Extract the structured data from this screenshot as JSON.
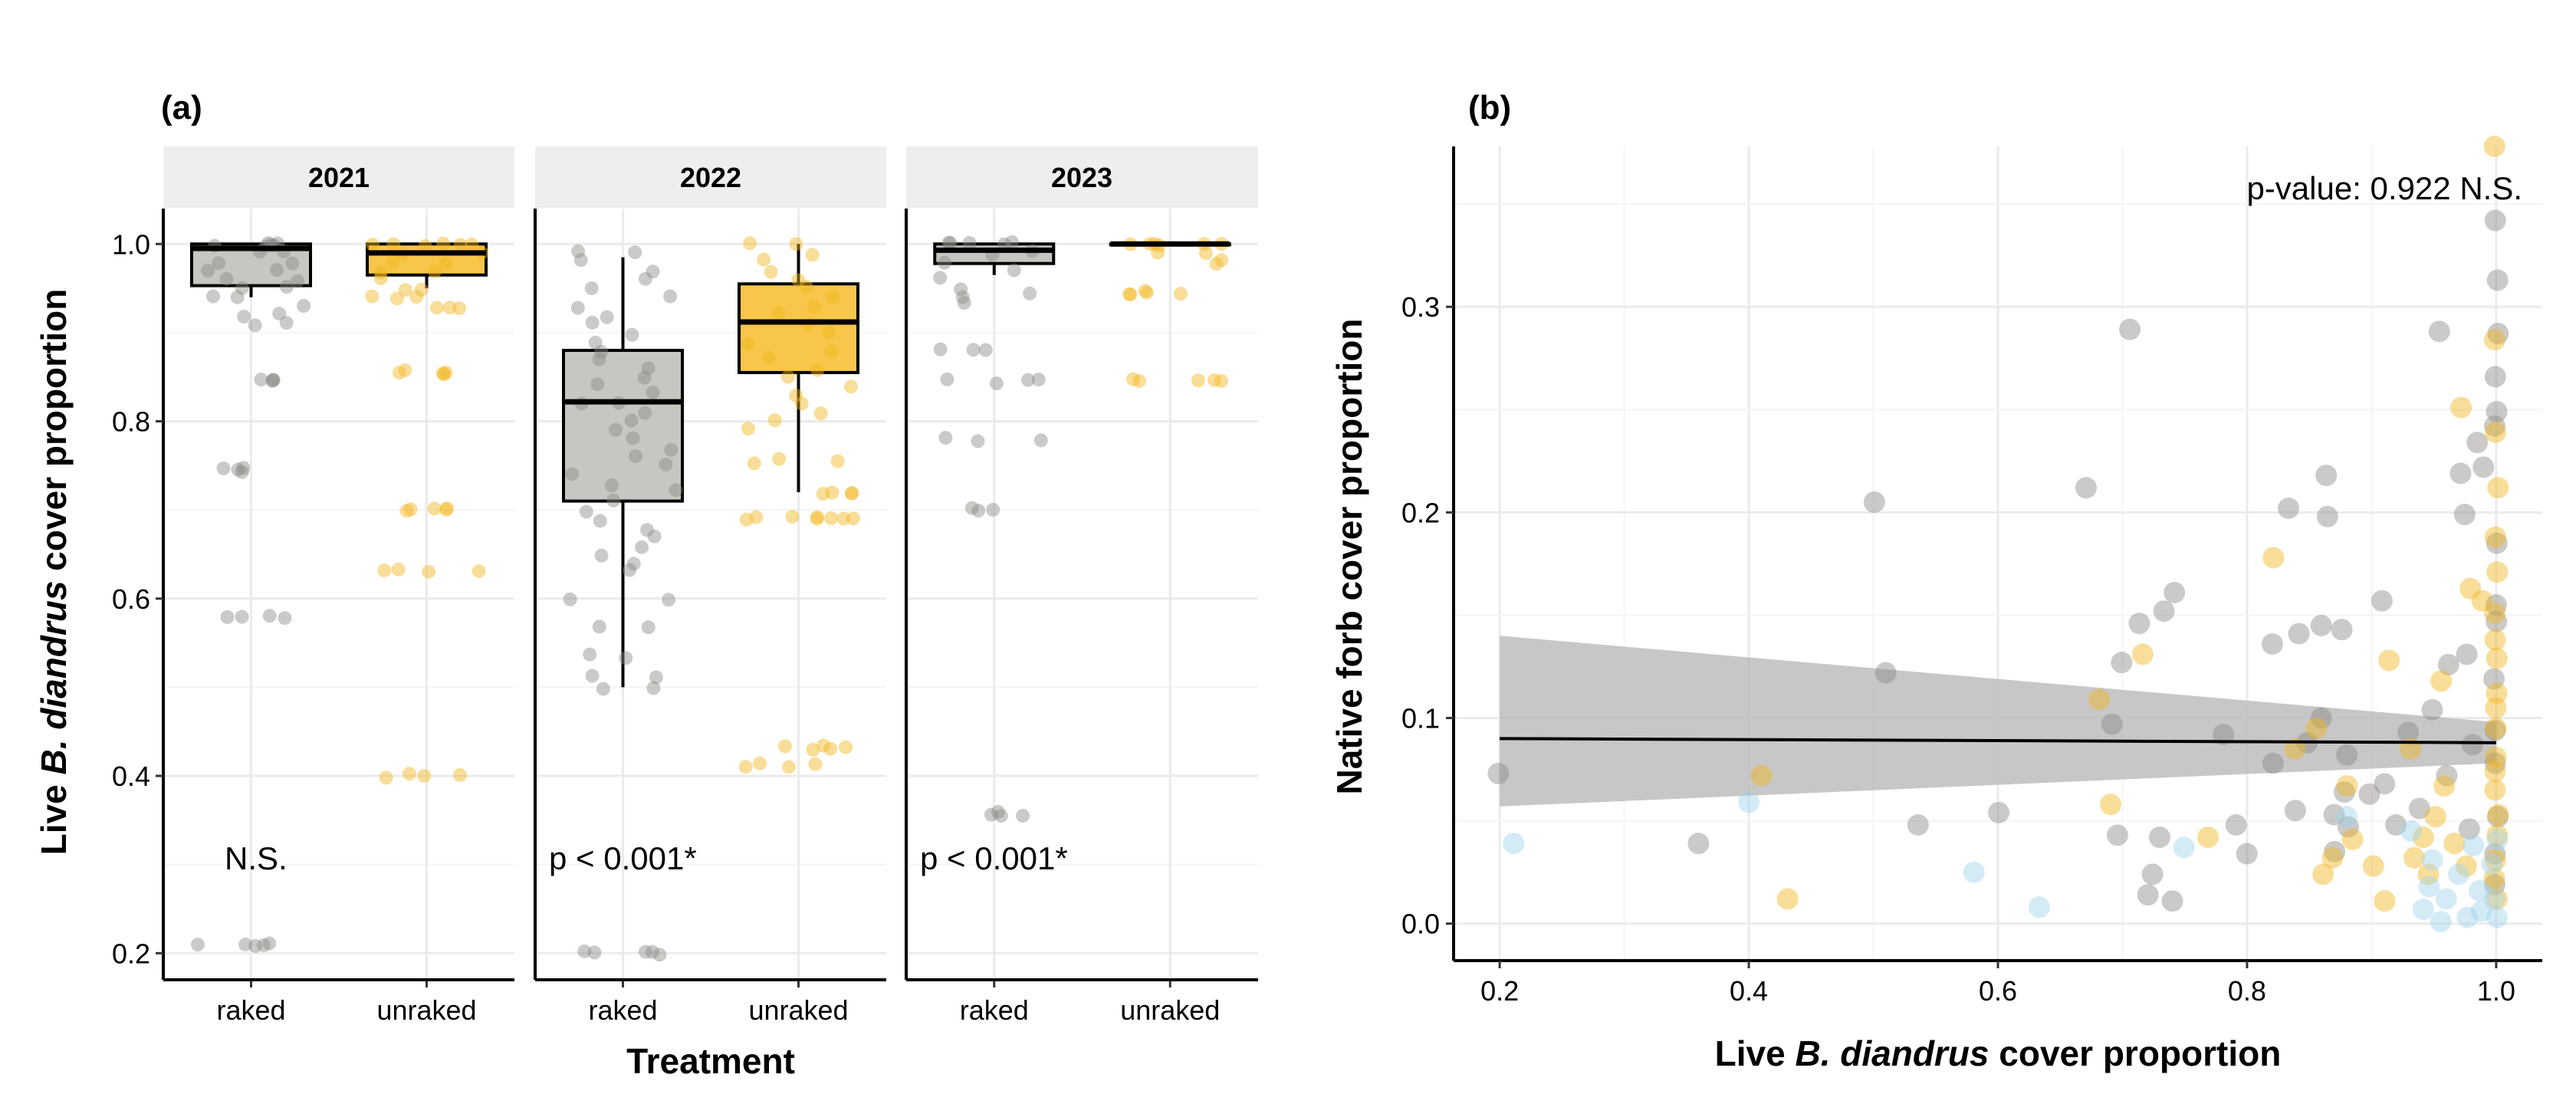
{
  "chart_data": [
    {
      "panel": "(a)",
      "type": "box",
      "ylabel": {
        "prefix": "Live ",
        "italic": "B. diandrus",
        "suffix": " cover proportion"
      },
      "xlabel": "Treatment",
      "ylim": [
        0.17,
        1.04
      ],
      "yticks": [
        "0.2",
        "0.4",
        "0.6",
        "0.8",
        "1.0"
      ],
      "grid": true,
      "colors": {
        "raked": "#8c8a85",
        "raked_box": "#c8c6c1",
        "unraked": "#f2b51d",
        "unraked_box": "#f7c64a"
      },
      "facets": [
        {
          "strip": "2021",
          "annotation": "N.S.",
          "categories": [
            "raked",
            "unraked"
          ],
          "boxes": [
            {
              "treatment": "raked",
              "min": 0.94,
              "q1": 0.953,
              "median": 0.995,
              "q3": 1.0,
              "max": 1.0,
              "points": [
                1.0,
                1.0,
                1.0,
                1.0,
                1.0,
                1.0,
                0.99,
                0.99,
                0.98,
                0.98,
                0.97,
                0.97,
                0.96,
                0.96,
                0.95,
                0.95,
                0.94,
                0.94,
                0.93,
                0.92,
                0.92,
                0.91,
                0.91,
                0.845,
                0.845,
                0.845,
                0.845,
                0.745,
                0.745,
                0.745,
                0.745,
                0.578,
                0.578,
                0.578,
                0.578,
                0.21,
                0.21,
                0.21,
                0.21,
                0.21
              ]
            },
            {
              "treatment": "unraked",
              "min": 0.95,
              "q1": 0.965,
              "median": 0.99,
              "q3": 1.0,
              "max": 1.0,
              "points": [
                1.0,
                1.0,
                1.0,
                1.0,
                1.0,
                1.0,
                0.99,
                0.99,
                0.98,
                0.98,
                0.97,
                0.97,
                0.96,
                0.95,
                0.95,
                0.94,
                0.94,
                0.94,
                0.93,
                0.93,
                0.93,
                0.855,
                0.855,
                0.855,
                0.855,
                0.855,
                0.7,
                0.7,
                0.7,
                0.7,
                0.7,
                0.632,
                0.632,
                0.632,
                0.632,
                0.4,
                0.4,
                0.4,
                0.4
              ]
            }
          ]
        },
        {
          "strip": "2022",
          "annotation": "p < 0.001*",
          "categories": [
            "raked",
            "unraked"
          ],
          "boxes": [
            {
              "treatment": "raked",
              "min": 0.5,
              "q1": 0.71,
              "median": 0.822,
              "q3": 0.88,
              "max": 0.985,
              "points": [
                0.99,
                0.99,
                0.98,
                0.97,
                0.96,
                0.95,
                0.94,
                0.93,
                0.92,
                0.91,
                0.9,
                0.89,
                0.88,
                0.87,
                0.86,
                0.85,
                0.84,
                0.83,
                0.82,
                0.82,
                0.81,
                0.8,
                0.79,
                0.78,
                0.77,
                0.76,
                0.75,
                0.74,
                0.73,
                0.72,
                0.71,
                0.7,
                0.69,
                0.68,
                0.67,
                0.66,
                0.65,
                0.64,
                0.63,
                0.6,
                0.6,
                0.57,
                0.57,
                0.535,
                0.535,
                0.515,
                0.51,
                0.5,
                0.5,
                0.2,
                0.2,
                0.2,
                0.2,
                0.2
              ]
            },
            {
              "treatment": "unraked",
              "min": 0.72,
              "q1": 0.855,
              "median": 0.912,
              "q3": 0.955,
              "max": 1.0,
              "points": [
                1.0,
                1.0,
                0.99,
                0.98,
                0.97,
                0.96,
                0.95,
                0.94,
                0.93,
                0.92,
                0.91,
                0.9,
                0.89,
                0.88,
                0.87,
                0.86,
                0.85,
                0.84,
                0.83,
                0.82,
                0.81,
                0.8,
                0.79,
                0.755,
                0.755,
                0.755,
                0.72,
                0.72,
                0.72,
                0.72,
                0.69,
                0.69,
                0.69,
                0.69,
                0.69,
                0.69,
                0.69,
                0.69,
                0.432,
                0.432,
                0.432,
                0.432,
                0.432,
                0.412,
                0.412,
                0.412,
                0.412
              ]
            }
          ]
        },
        {
          "strip": "2023",
          "annotation": "p < 0.001*",
          "categories": [
            "raked",
            "unraked"
          ],
          "boxes": [
            {
              "treatment": "raked",
              "min": 0.965,
              "q1": 0.978,
              "median": 0.993,
              "q3": 1.0,
              "max": 1.0,
              "points": [
                1.0,
                1.0,
                1.0,
                1.0,
                1.0,
                0.99,
                0.99,
                0.98,
                0.97,
                0.96,
                0.95,
                0.945,
                0.94,
                0.935,
                0.88,
                0.88,
                0.88,
                0.845,
                0.845,
                0.845,
                0.845,
                0.78,
                0.78,
                0.78,
                0.7,
                0.7,
                0.7,
                0.357,
                0.357,
                0.357,
                0.357
              ]
            },
            {
              "treatment": "unraked",
              "min": 1.0,
              "q1": 1.0,
              "median": 1.0,
              "q3": 1.0,
              "max": 1.0,
              "points": [
                1.0,
                1.0,
                1.0,
                1.0,
                1.0,
                1.0,
                0.99,
                0.99,
                0.98,
                0.98,
                0.945,
                0.945,
                0.945,
                0.945,
                0.945,
                0.845,
                0.845,
                0.845,
                0.845,
                0.845
              ]
            }
          ]
        }
      ]
    },
    {
      "panel": "(b)",
      "type": "scatter",
      "annotation": "p-value: 0.922 N.S.",
      "xlabel": {
        "prefix": "Live ",
        "italic": "B. diandrus",
        "suffix": " cover proportion"
      },
      "ylabel": "Native forb cover proportion",
      "xlim": [
        0.163,
        1.037
      ],
      "ylim": [
        -0.018,
        0.378
      ],
      "xticks": [
        "0.2",
        "0.4",
        "0.6",
        "0.8",
        "1.0"
      ],
      "yticks": [
        "0.0",
        "0.1",
        "0.2",
        "0.3"
      ],
      "grid": true,
      "colors": {
        "gray": "#8c8a85",
        "yellow": "#f2b51d",
        "blue": "#9fd3ec",
        "band": "#bdbdbd",
        "line": "#000000"
      },
      "fit": {
        "x": [
          0.2,
          1.0
        ],
        "y": [
          0.09,
          0.088
        ],
        "band_lower": [
          0.057,
          0.078
        ],
        "band_upper": [
          0.14,
          0.098
        ]
      },
      "series": [
        {
          "color": "gray",
          "points": [
            [
              0.2,
              0.073
            ],
            [
              0.36,
              0.039
            ],
            [
              0.5,
              0.205
            ],
            [
              0.51,
              0.122
            ],
            [
              0.535,
              0.048
            ],
            [
              0.6,
              0.054
            ],
            [
              0.67,
              0.212
            ],
            [
              0.69,
              0.097
            ],
            [
              0.695,
              0.043
            ],
            [
              0.7,
              0.127
            ],
            [
              0.705,
              0.289
            ],
            [
              0.715,
              0.146
            ],
            [
              0.72,
              0.014
            ],
            [
              0.725,
              0.024
            ],
            [
              0.73,
              0.042
            ],
            [
              0.735,
              0.152
            ],
            [
              0.74,
              0.161
            ],
            [
              0.74,
              0.011
            ],
            [
              0.78,
              0.092
            ],
            [
              0.79,
              0.048
            ],
            [
              0.8,
              0.034
            ],
            [
              0.82,
              0.078
            ],
            [
              0.82,
              0.136
            ],
            [
              0.835,
              0.202
            ],
            [
              0.84,
              0.141
            ],
            [
              0.84,
              0.055
            ],
            [
              0.85,
              0.088
            ],
            [
              0.86,
              0.145
            ],
            [
              0.86,
              0.1
            ],
            [
              0.865,
              0.218
            ],
            [
              0.865,
              0.198
            ],
            [
              0.87,
              0.053
            ],
            [
              0.87,
              0.035
            ],
            [
              0.875,
              0.143
            ],
            [
              0.88,
              0.082
            ],
            [
              0.88,
              0.064
            ],
            [
              0.88,
              0.047
            ],
            [
              0.9,
              0.063
            ],
            [
              0.91,
              0.068
            ],
            [
              0.91,
              0.157
            ],
            [
              0.92,
              0.048
            ],
            [
              0.93,
              0.093
            ],
            [
              0.94,
              0.056
            ],
            [
              0.95,
              0.104
            ],
            [
              0.955,
              0.288
            ],
            [
              0.96,
              0.126
            ],
            [
              0.96,
              0.072
            ],
            [
              0.97,
              0.219
            ],
            [
              0.975,
              0.199
            ],
            [
              0.975,
              0.131
            ],
            [
              0.98,
              0.046
            ],
            [
              0.98,
              0.087
            ],
            [
              0.985,
              0.234
            ],
            [
              0.99,
              0.222
            ],
            [
              1.0,
              0.342
            ],
            [
              1.0,
              0.313
            ],
            [
              1.0,
              0.287
            ],
            [
              1.0,
              0.266
            ],
            [
              1.0,
              0.249
            ],
            [
              1.0,
              0.242
            ],
            [
              1.0,
              0.185
            ],
            [
              1.0,
              0.155
            ],
            [
              1.0,
              0.147
            ],
            [
              1.0,
              0.119
            ],
            [
              1.0,
              0.094
            ],
            [
              1.0,
              0.078
            ],
            [
              1.0,
              0.052
            ],
            [
              1.0,
              0.034
            ],
            [
              1.0,
              0.019
            ]
          ]
        },
        {
          "color": "yellow",
          "points": [
            [
              0.41,
              0.072
            ],
            [
              0.43,
              0.012
            ],
            [
              0.68,
              0.109
            ],
            [
              0.69,
              0.058
            ],
            [
              0.715,
              0.131
            ],
            [
              0.77,
              0.042
            ],
            [
              0.82,
              0.178
            ],
            [
              0.84,
              0.085
            ],
            [
              0.855,
              0.095
            ],
            [
              0.86,
              0.024
            ],
            [
              0.87,
              0.032
            ],
            [
              0.88,
              0.067
            ],
            [
              0.885,
              0.041
            ],
            [
              0.9,
              0.028
            ],
            [
              0.91,
              0.011
            ],
            [
              0.915,
              0.128
            ],
            [
              0.93,
              0.085
            ],
            [
              0.935,
              0.032
            ],
            [
              0.94,
              0.042
            ],
            [
              0.945,
              0.024
            ],
            [
              0.95,
              0.052
            ],
            [
              0.955,
              0.118
            ],
            [
              0.96,
              0.067
            ],
            [
              0.965,
              0.039
            ],
            [
              0.97,
              0.251
            ],
            [
              0.975,
              0.028
            ],
            [
              0.98,
              0.163
            ],
            [
              0.99,
              0.157
            ],
            [
              1.0,
              0.378
            ],
            [
              1.0,
              0.284
            ],
            [
              1.0,
              0.239
            ],
            [
              1.0,
              0.212
            ],
            [
              1.0,
              0.188
            ],
            [
              1.0,
              0.171
            ],
            [
              1.0,
              0.151
            ],
            [
              1.0,
              0.138
            ],
            [
              1.0,
              0.129
            ],
            [
              1.0,
              0.112
            ],
            [
              1.0,
              0.105
            ],
            [
              1.0,
              0.095
            ],
            [
              1.0,
              0.081
            ],
            [
              1.0,
              0.074
            ],
            [
              1.0,
              0.065
            ],
            [
              1.0,
              0.053
            ],
            [
              1.0,
              0.043
            ],
            [
              1.0,
              0.031
            ],
            [
              1.0,
              0.022
            ],
            [
              1.0,
              0.012
            ]
          ]
        },
        {
          "color": "blue",
          "points": [
            [
              0.21,
              0.039
            ],
            [
              0.4,
              0.059
            ],
            [
              0.58,
              0.025
            ],
            [
              0.635,
              0.008
            ],
            [
              0.75,
              0.037
            ],
            [
              0.88,
              0.052
            ],
            [
              0.93,
              0.045
            ],
            [
              0.94,
              0.007
            ],
            [
              0.945,
              0.018
            ],
            [
              0.95,
              0.031
            ],
            [
              0.955,
              0.001
            ],
            [
              0.96,
              0.012
            ],
            [
              0.97,
              0.024
            ],
            [
              0.975,
              0.003
            ],
            [
              0.98,
              0.038
            ],
            [
              0.985,
              0.016
            ],
            [
              0.99,
              0.006
            ],
            [
              0.995,
              0.029
            ],
            [
              1.0,
              0.012
            ],
            [
              1.0,
              0.003
            ],
            [
              1.0,
              0.041
            ]
          ]
        }
      ]
    }
  ]
}
